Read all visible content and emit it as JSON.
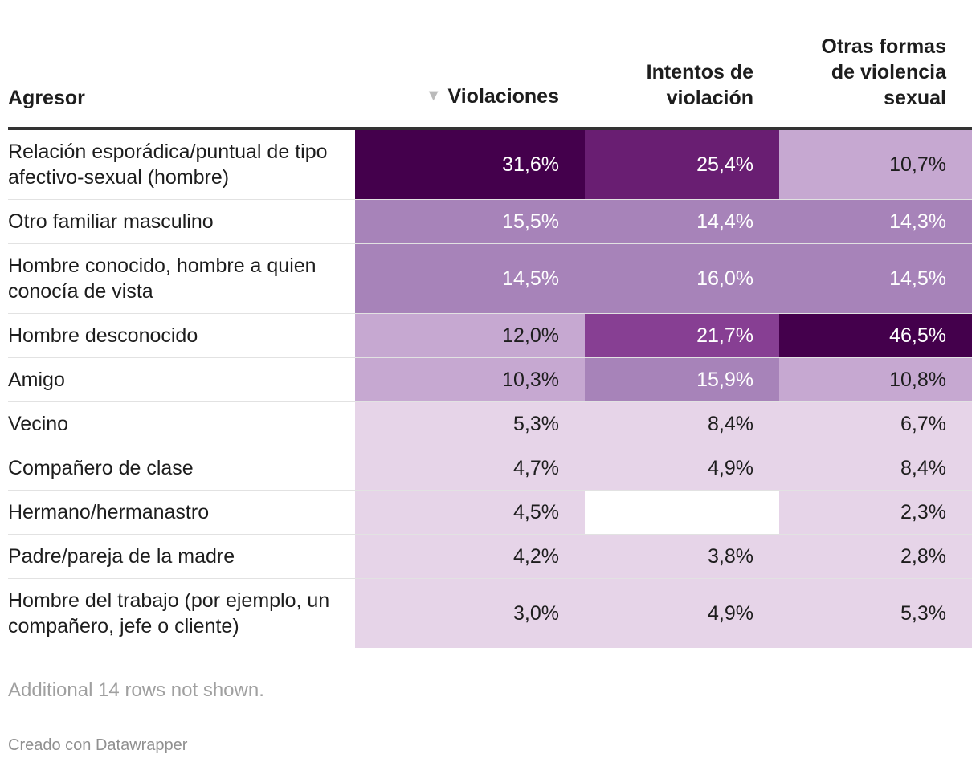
{
  "chart_data": {
    "type": "table",
    "columns": [
      "Agresor",
      "Violaciones",
      "Intentos de violación",
      "Otras formas de violencia sexual"
    ],
    "sorted_column": "Violaciones",
    "sort_indicator": "▼",
    "rows": [
      {
        "agresor": "Relación esporádica/puntual de tipo afectivo-sexual (hombre)",
        "values": [
          "31,6%",
          "25,4%",
          "10,7%"
        ],
        "nums": [
          31.6,
          25.4,
          10.7
        ]
      },
      {
        "agresor": "Otro familiar masculino",
        "values": [
          "15,5%",
          "14,4%",
          "14,3%"
        ],
        "nums": [
          15.5,
          14.4,
          14.3
        ]
      },
      {
        "agresor": "Hombre conocido, hombre a quien conocía de vista",
        "values": [
          "14,5%",
          "16,0%",
          "14,5%"
        ],
        "nums": [
          14.5,
          16.0,
          14.5
        ]
      },
      {
        "agresor": "Hombre desconocido",
        "values": [
          "12,0%",
          "21,7%",
          "46,5%"
        ],
        "nums": [
          12.0,
          21.7,
          46.5
        ]
      },
      {
        "agresor": "Amigo",
        "values": [
          "10,3%",
          "15,9%",
          "10,8%"
        ],
        "nums": [
          10.3,
          15.9,
          10.8
        ]
      },
      {
        "agresor": "Vecino",
        "values": [
          "5,3%",
          "8,4%",
          "6,7%"
        ],
        "nums": [
          5.3,
          8.4,
          6.7
        ]
      },
      {
        "agresor": "Compañero de clase",
        "values": [
          "4,7%",
          "4,9%",
          "8,4%"
        ],
        "nums": [
          4.7,
          4.9,
          8.4
        ]
      },
      {
        "agresor": "Hermano/hermanastro",
        "values": [
          "4,5%",
          "",
          "2,3%"
        ],
        "nums": [
          4.5,
          null,
          2.3
        ]
      },
      {
        "agresor": "Padre/pareja de la madre",
        "values": [
          "4,2%",
          "3,8%",
          "2,8%"
        ],
        "nums": [
          4.2,
          3.8,
          2.8
        ]
      },
      {
        "agresor": "Hombre del trabajo (por ejemplo, un compañero, jefe o cliente)",
        "values": [
          "3,0%",
          "4,9%",
          "5,3%"
        ],
        "nums": [
          3.0,
          4.9,
          5.3
        ]
      }
    ],
    "colors": {
      "lowest": "#e6d4e8",
      "low": "#c6a8d1",
      "mid": "#a783b9",
      "high": "#873f93",
      "higher": "#691e72",
      "highest": "#44004c"
    }
  },
  "footer": {
    "note": "Additional 14 rows not shown.",
    "credit": "Creado con Datawrapper"
  }
}
